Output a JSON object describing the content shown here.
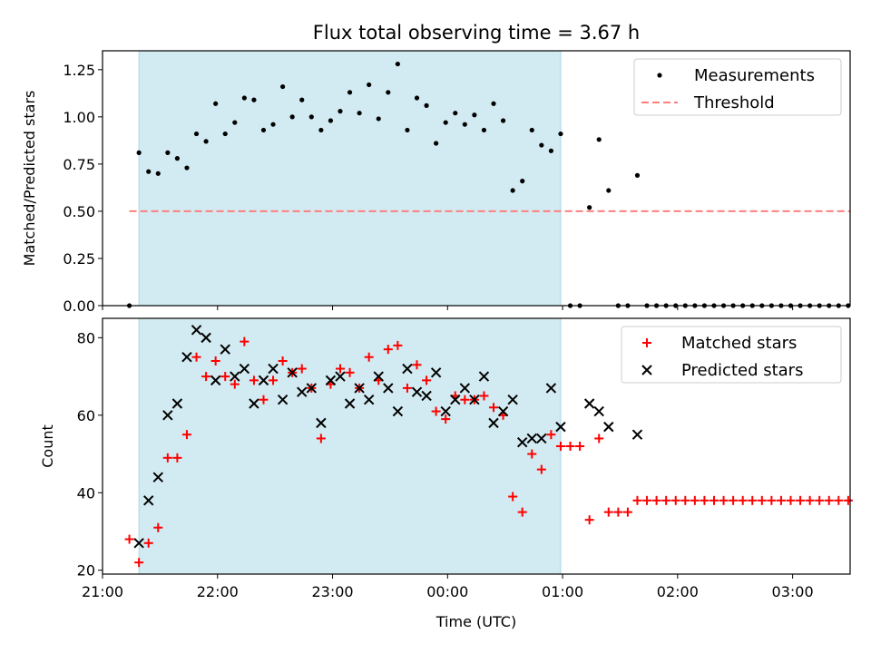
{
  "title": "Flux total observing time = 3.67 h",
  "colors": {
    "shade": "#add8e6",
    "measurement": "#000000",
    "threshold": "#ff7f7f",
    "matched": "#ff0000",
    "predicted": "#000000"
  },
  "chart_data": [
    {
      "type": "scatter",
      "ylabel": "Matched/Predicted stars",
      "ylim": [
        0,
        1.35
      ],
      "yticks": [
        0,
        0.25,
        0.5,
        0.75,
        1.0,
        1.25
      ],
      "ytick_labels": [
        "0.00",
        "0.25",
        "0.50",
        "0.75",
        "1.00",
        "1.25"
      ],
      "xlim": [
        "21:00",
        "03:30"
      ],
      "shaded_interval": [
        "21:19",
        "00:59"
      ],
      "legend": {
        "placement": "top-right",
        "entries": [
          "Measurements",
          "Threshold"
        ]
      },
      "threshold": {
        "name": "Threshold",
        "value": 0.5,
        "x_range": [
          "21:14",
          "03:30"
        ]
      },
      "series": [
        {
          "name": "Measurements",
          "x": [
            "21:14",
            "21:19",
            "21:24",
            "21:29",
            "21:34",
            "21:39",
            "21:44",
            "21:49",
            "21:54",
            "21:59",
            "22:04",
            "22:09",
            "22:14",
            "22:19",
            "22:24",
            "22:29",
            "22:34",
            "22:39",
            "22:44",
            "22:49",
            "22:54",
            "22:59",
            "23:04",
            "23:09",
            "23:14",
            "23:19",
            "23:24",
            "23:29",
            "23:34",
            "23:39",
            "23:44",
            "23:49",
            "23:54",
            "23:59",
            "00:04",
            "00:09",
            "00:14",
            "00:19",
            "00:24",
            "00:29",
            "00:34",
            "00:39",
            "00:44",
            "00:49",
            "00:54",
            "00:59",
            "01:04",
            "01:09",
            "01:14",
            "01:19",
            "01:24",
            "01:29",
            "01:34",
            "01:39",
            "01:44",
            "01:49",
            "01:54",
            "01:59",
            "02:04",
            "02:09",
            "02:14",
            "02:19",
            "02:24",
            "02:29",
            "02:34",
            "02:39",
            "02:44",
            "02:49",
            "02:54",
            "02:59",
            "03:04",
            "03:09",
            "03:14",
            "03:19",
            "03:24",
            "03:29"
          ],
          "y": [
            0.0,
            0.81,
            0.71,
            0.7,
            0.81,
            0.78,
            0.73,
            0.91,
            0.87,
            1.07,
            0.91,
            0.97,
            1.1,
            1.09,
            0.93,
            0.96,
            1.16,
            1.0,
            1.09,
            1.0,
            0.93,
            0.98,
            1.03,
            1.13,
            1.02,
            1.17,
            0.99,
            1.13,
            1.28,
            0.93,
            1.1,
            1.06,
            0.86,
            0.97,
            1.02,
            0.96,
            1.01,
            0.93,
            1.07,
            0.98,
            0.61,
            0.66,
            0.93,
            0.85,
            0.82,
            0.91,
            0.0,
            0.0,
            0.52,
            0.88,
            0.61,
            0.0,
            0.0,
            0.69,
            0.0,
            0.0,
            0.0,
            0.0,
            0.0,
            0.0,
            0.0,
            0.0,
            0.0,
            0.0,
            0.0,
            0.0,
            0.0,
            0.0,
            0.0,
            0.0,
            0.0,
            0.0,
            0.0,
            0.0,
            0.0,
            0.0
          ],
          "missing_note": ""
        }
      ]
    },
    {
      "type": "scatter",
      "ylabel": "Count",
      "xlabel": "Time (UTC)",
      "ylim": [
        19,
        85
      ],
      "yticks": [
        20,
        40,
        60,
        80
      ],
      "ytick_labels": [
        "20",
        "40",
        "60",
        "80"
      ],
      "xlim": [
        "21:00",
        "03:30"
      ],
      "xticks": [
        "21:00",
        "22:00",
        "23:00",
        "00:00",
        "01:00",
        "02:00",
        "03:00"
      ],
      "shaded_interval": [
        "21:19",
        "00:59"
      ],
      "legend": {
        "placement": "top-right",
        "entries": [
          "Matched stars",
          "Predicted stars"
        ]
      },
      "series": [
        {
          "name": "Matched stars",
          "x": [
            "21:14",
            "21:19",
            "21:24",
            "21:29",
            "21:34",
            "21:39",
            "21:44",
            "21:49",
            "21:54",
            "21:59",
            "22:04",
            "22:09",
            "22:14",
            "22:19",
            "22:24",
            "22:29",
            "22:34",
            "22:39",
            "22:44",
            "22:49",
            "22:54",
            "22:59",
            "23:04",
            "23:09",
            "23:14",
            "23:19",
            "23:24",
            "23:29",
            "23:34",
            "23:39",
            "23:44",
            "23:49",
            "23:54",
            "23:59",
            "00:04",
            "00:09",
            "00:14",
            "00:19",
            "00:24",
            "00:29",
            "00:34",
            "00:39",
            "00:44",
            "00:49",
            "00:54",
            "00:59",
            "01:04",
            "01:09",
            "01:14",
            "01:19",
            "01:24",
            "01:29",
            "01:34",
            "01:39",
            "01:44",
            "01:49",
            "01:54",
            "01:59",
            "02:04",
            "02:09",
            "02:14",
            "02:19",
            "02:24",
            "02:29",
            "02:34",
            "02:39",
            "02:44",
            "02:49",
            "02:54",
            "02:59",
            "03:04",
            "03:09",
            "03:14",
            "03:19",
            "03:24",
            "03:29"
          ],
          "y": [
            28,
            22,
            27,
            31,
            49,
            49,
            55,
            75,
            70,
            74,
            70,
            68,
            79,
            69,
            64,
            69,
            74,
            71,
            72,
            67,
            54,
            68,
            72,
            71,
            67,
            75,
            69,
            77,
            78,
            67,
            73,
            69,
            61,
            59,
            65,
            64,
            64,
            65,
            62,
            60,
            39,
            35,
            50,
            46,
            55,
            52,
            52,
            52,
            33,
            54,
            35,
            35,
            35,
            38,
            38,
            38,
            38,
            38,
            38,
            38,
            38,
            38,
            38,
            38,
            38,
            38,
            38,
            38,
            38,
            38,
            38,
            38,
            38,
            38,
            38,
            38
          ]
        },
        {
          "name": "Predicted stars",
          "x": [
            "21:19",
            "21:24",
            "21:29",
            "21:34",
            "21:39",
            "21:44",
            "21:49",
            "21:54",
            "21:59",
            "22:04",
            "22:09",
            "22:14",
            "22:19",
            "22:24",
            "22:29",
            "22:34",
            "22:39",
            "22:44",
            "22:49",
            "22:54",
            "22:59",
            "23:04",
            "23:09",
            "23:14",
            "23:19",
            "23:24",
            "23:29",
            "23:34",
            "23:39",
            "23:44",
            "23:49",
            "23:54",
            "23:59",
            "00:04",
            "00:09",
            "00:14",
            "00:19",
            "00:24",
            "00:29",
            "00:34",
            "00:39",
            "00:44",
            "00:49",
            "00:54",
            "00:59",
            "01:14",
            "01:19",
            "01:24",
            "01:39"
          ],
          "y": [
            27,
            38,
            44,
            60,
            63,
            75,
            82,
            80,
            69,
            77,
            70,
            72,
            63,
            69,
            72,
            64,
            71,
            66,
            67,
            58,
            69,
            70,
            63,
            67,
            64,
            70,
            67,
            61,
            72,
            66,
            65,
            71,
            61,
            64,
            67,
            64,
            70,
            58,
            61,
            64,
            53,
            54,
            54,
            67,
            57,
            63,
            61,
            57,
            55
          ]
        }
      ]
    }
  ]
}
